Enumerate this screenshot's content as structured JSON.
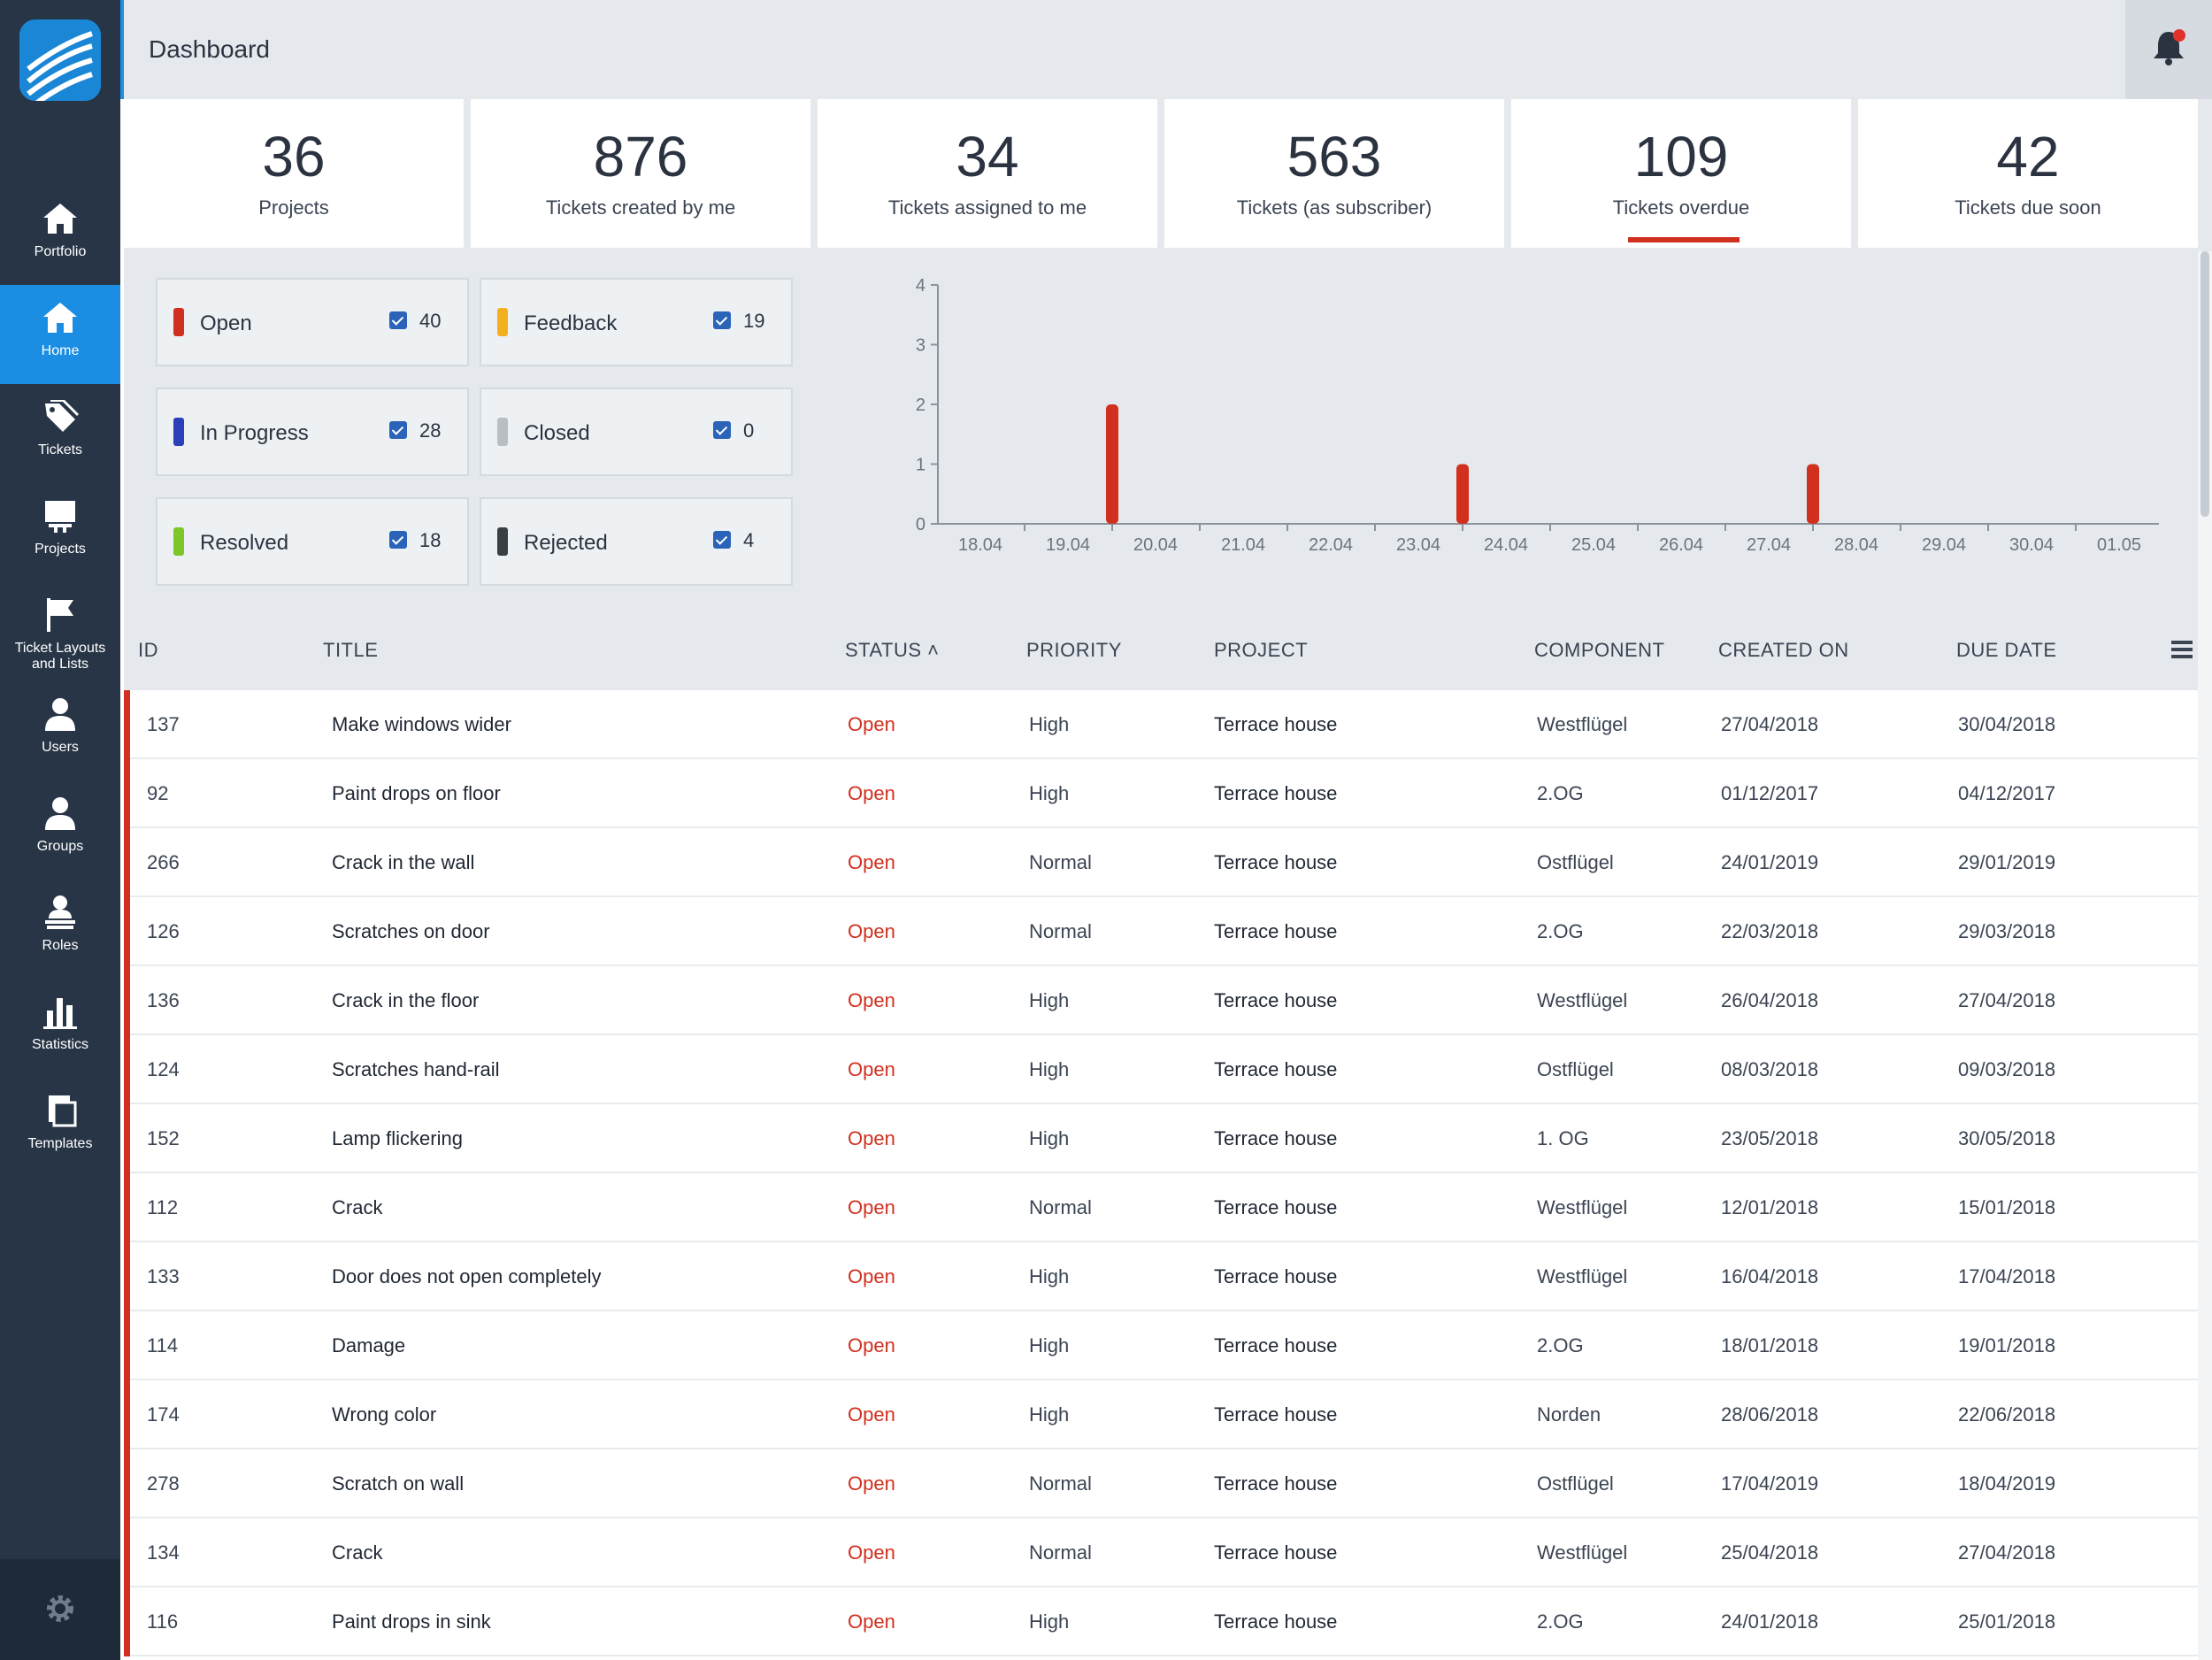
{
  "header": {
    "title": "Dashboard"
  },
  "sidebar": {
    "items": [
      {
        "label": "Portfolio",
        "icon": "home-icon"
      },
      {
        "label": "Home",
        "icon": "home-icon",
        "active": true
      },
      {
        "label": "Tickets",
        "icon": "tag-icon"
      },
      {
        "label": "Projects",
        "icon": "projects-icon"
      },
      {
        "label": "Ticket Layouts and Lists",
        "icon": "flag-icon"
      },
      {
        "label": "Users",
        "icon": "user-icon"
      },
      {
        "label": "Groups",
        "icon": "group-icon"
      },
      {
        "label": "Roles",
        "icon": "role-icon"
      },
      {
        "label": "Statistics",
        "icon": "bar-chart-icon"
      },
      {
        "label": "Templates",
        "icon": "template-icon"
      }
    ],
    "settings_icon": "gear-icon"
  },
  "stats": [
    {
      "value": "36",
      "caption": "Projects"
    },
    {
      "value": "876",
      "caption": "Tickets created by me"
    },
    {
      "value": "34",
      "caption": "Tickets assigned to me"
    },
    {
      "value": "563",
      "caption": "Tickets (as subscriber)"
    },
    {
      "value": "109",
      "caption": "Tickets overdue",
      "active": true
    },
    {
      "value": "42",
      "caption": "Tickets due soon"
    }
  ],
  "statuses": [
    {
      "name": "Open",
      "count": "40",
      "color": "#d1301f"
    },
    {
      "name": "Feedback",
      "count": "19",
      "color": "#f2b01e"
    },
    {
      "name": "In Progress",
      "count": "28",
      "color": "#2a3fb8"
    },
    {
      "name": "Closed",
      "count": "0",
      "color": "#b9bec4"
    },
    {
      "name": "Resolved",
      "count": "18",
      "color": "#7cc62a"
    },
    {
      "name": "Rejected",
      "count": "4",
      "color": "#3a3f45"
    }
  ],
  "chart_data": {
    "type": "bar",
    "categories": [
      "18.04",
      "19.04",
      "20.04",
      "21.04",
      "22.04",
      "23.04",
      "24.04",
      "25.04",
      "26.04",
      "27.04",
      "28.04",
      "29.04",
      "30.04",
      "01.05"
    ],
    "x_points": [
      "18.04",
      "18.5",
      "19.04",
      "20.04",
      "21.04",
      "21.5",
      "22.04",
      "23.04",
      "24.04",
      "24.5",
      "25.04"
    ],
    "series": [
      {
        "values": [
          0,
          2,
          0,
          0,
          0,
          1,
          0,
          0,
          0,
          1,
          0,
          0,
          0,
          0
        ]
      }
    ],
    "ylim": [
      0,
      4
    ],
    "yticks": [
      "0",
      "1",
      "2",
      "3",
      "4"
    ],
    "bar_color": "#d1301f"
  },
  "table": {
    "columns": [
      "ID",
      "TITLE",
      "STATUS ˄",
      "PRIORITY",
      "PROJECT",
      "COMPONENT",
      "CREATED ON",
      "DUE DATE"
    ],
    "rows": [
      [
        "137",
        "Make windows wider",
        "Open",
        "High",
        "Terrace house",
        "Westflügel",
        "27/04/2018",
        "30/04/2018"
      ],
      [
        "92",
        "Paint drops on floor",
        "Open",
        "High",
        "Terrace house",
        "2.OG",
        "01/12/2017",
        "04/12/2017"
      ],
      [
        "266",
        "Crack in the wall",
        "Open",
        "Normal",
        "Terrace house",
        "Ostflügel",
        "24/01/2019",
        "29/01/2019"
      ],
      [
        "126",
        "Scratches on door",
        "Open",
        "Normal",
        "Terrace house",
        "2.OG",
        "22/03/2018",
        "29/03/2018"
      ],
      [
        "136",
        "Crack in the floor",
        "Open",
        "High",
        "Terrace house",
        "Westflügel",
        "26/04/2018",
        "27/04/2018"
      ],
      [
        "124",
        "Scratches hand-rail",
        "Open",
        "High",
        "Terrace house",
        "Ostflügel",
        "08/03/2018",
        "09/03/2018"
      ],
      [
        "152",
        "Lamp flickering",
        "Open",
        "High",
        "Terrace house",
        "1. OG",
        "23/05/2018",
        "30/05/2018"
      ],
      [
        "112",
        "Crack",
        "Open",
        "Normal",
        "Terrace house",
        "Westflügel",
        "12/01/2018",
        "15/01/2018"
      ],
      [
        "133",
        "Door does not open completely",
        "Open",
        "High",
        "Terrace house",
        "Westflügel",
        "16/04/2018",
        "17/04/2018"
      ],
      [
        "114",
        "Damage",
        "Open",
        "High",
        "Terrace house",
        "2.OG",
        "18/01/2018",
        "19/01/2018"
      ],
      [
        "174",
        "Wrong color",
        "Open",
        "High",
        "Terrace house",
        "Norden",
        "28/06/2018",
        "22/06/2018"
      ],
      [
        "278",
        "Scratch on wall",
        "Open",
        "Normal",
        "Terrace house",
        "Ostflügel",
        "17/04/2019",
        "18/04/2019"
      ],
      [
        "134",
        "Crack",
        "Open",
        "Normal",
        "Terrace house",
        "Westflügel",
        "25/04/2018",
        "27/04/2018"
      ],
      [
        "116",
        "Paint drops in sink",
        "Open",
        "High",
        "Terrace house",
        "2.OG",
        "24/01/2018",
        "25/01/2018"
      ]
    ]
  }
}
